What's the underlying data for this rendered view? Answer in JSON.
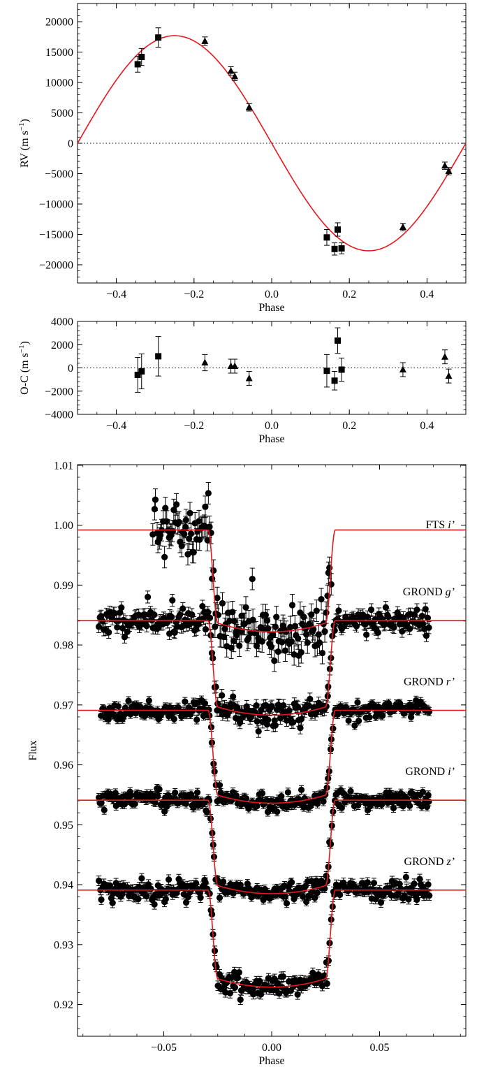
{
  "chart_data": [
    {
      "type": "scatter",
      "ylabel": "RV (m s−1)",
      "xlabel": "Phase",
      "xlim": [
        -0.5,
        0.5
      ],
      "ylim": [
        -23000,
        23000
      ],
      "xticks": [
        -0.4,
        -0.2,
        0.0,
        0.2,
        0.4
      ],
      "xtick_labels": [
        "−0.4",
        "−0.2",
        "0.0",
        "0.2",
        "0.4"
      ],
      "yticks": [
        -20000,
        -15000,
        -10000,
        -5000,
        0,
        5000,
        10000,
        15000,
        20000
      ],
      "ytick_labels": [
        "−20000",
        "−15000",
        "−10000",
        "−5000",
        "0",
        "5000",
        "10000",
        "15000",
        "20000"
      ],
      "zero_line": true,
      "model": {
        "type": "sine",
        "amplitude": 17700,
        "color": "#e8171d"
      },
      "series": [
        {
          "marker": "square",
          "points": [
            {
              "x": -0.345,
              "y": 13000,
              "err": 1300
            },
            {
              "x": -0.335,
              "y": 14200,
              "err": 1400
            },
            {
              "x": -0.292,
              "y": 17400,
              "err": 1600
            },
            {
              "x": 0.142,
              "y": -15500,
              "err": 1300
            },
            {
              "x": 0.162,
              "y": -17400,
              "err": 1000
            },
            {
              "x": 0.17,
              "y": -14200,
              "err": 1100
            },
            {
              "x": 0.18,
              "y": -17300,
              "err": 900
            }
          ]
        },
        {
          "marker": "triangle",
          "points": [
            {
              "x": -0.172,
              "y": 16800,
              "err": 700
            },
            {
              "x": -0.105,
              "y": 11900,
              "err": 700
            },
            {
              "x": -0.095,
              "y": 11000,
              "err": 700
            },
            {
              "x": -0.058,
              "y": 5900,
              "err": 600
            },
            {
              "x": 0.338,
              "y": -13800,
              "err": 600
            },
            {
              "x": 0.446,
              "y": -3700,
              "err": 600
            },
            {
              "x": 0.456,
              "y": -4600,
              "err": 600
            }
          ]
        }
      ]
    },
    {
      "type": "scatter",
      "ylabel": "O-C (m s−1)",
      "xlabel": "Phase",
      "xlim": [
        -0.5,
        0.5
      ],
      "ylim": [
        -4000,
        4000
      ],
      "xticks": [
        -0.4,
        -0.2,
        0.0,
        0.2,
        0.4
      ],
      "xtick_labels": [
        "−0.4",
        "−0.2",
        "0.0",
        "0.2",
        "0.4"
      ],
      "yticks": [
        -4000,
        -2000,
        0,
        2000,
        4000
      ],
      "ytick_labels": [
        "−4000",
        "−2000",
        "0",
        "2000",
        "4000"
      ],
      "zero_line": true,
      "series": [
        {
          "marker": "square",
          "points": [
            {
              "x": -0.345,
              "y": -600,
              "err": 1500
            },
            {
              "x": -0.335,
              "y": -300,
              "err": 1500
            },
            {
              "x": -0.292,
              "y": 1000,
              "err": 1700
            },
            {
              "x": 0.142,
              "y": -250,
              "err": 1400
            },
            {
              "x": 0.162,
              "y": -1100,
              "err": 800
            },
            {
              "x": 0.17,
              "y": 2350,
              "err": 1100
            },
            {
              "x": 0.18,
              "y": -150,
              "err": 1000
            }
          ]
        },
        {
          "marker": "triangle",
          "points": [
            {
              "x": -0.172,
              "y": 450,
              "err": 700
            },
            {
              "x": -0.105,
              "y": 150,
              "err": 600
            },
            {
              "x": -0.095,
              "y": 150,
              "err": 600
            },
            {
              "x": -0.058,
              "y": -900,
              "err": 600
            },
            {
              "x": 0.338,
              "y": -150,
              "err": 600
            },
            {
              "x": 0.446,
              "y": 950,
              "err": 600
            },
            {
              "x": 0.456,
              "y": -700,
              "err": 600
            }
          ]
        }
      ]
    },
    {
      "type": "scatter",
      "ylabel": "Flux",
      "xlabel": "Phase",
      "xlim": [
        -0.09,
        0.09
      ],
      "ylim": [
        0.9147,
        1.0101
      ],
      "xticks": [
        -0.05,
        0.0,
        0.05
      ],
      "xtick_labels": [
        "−0.05",
        "0.00",
        "0.05"
      ],
      "yticks": [
        0.92,
        0.93,
        0.94,
        0.95,
        0.96,
        0.97,
        0.98,
        0.99,
        1.0,
        1.01
      ],
      "ytick_labels": [
        "0.92",
        "0.93",
        "0.94",
        "0.95",
        "0.96",
        "0.97",
        "0.98",
        "0.99",
        "1.00",
        "1.01"
      ],
      "model_color": "#e8171d",
      "transit": {
        "t14": 0.0295,
        "ingress": 0.0045,
        "limb_darkening": 0.45
      },
      "series": [
        {
          "label": "FTS",
          "band": "i’",
          "baseline": 0.9992,
          "depth": 0.017,
          "noise": 0.0023,
          "err": 0.0018,
          "xrange": [
            -0.055,
            0.0275
          ],
          "n": 145,
          "seed": 7
        },
        {
          "label": "GROND",
          "band": "g’",
          "baseline": 0.9841,
          "depth": 0.0018,
          "noise": 0.0011,
          "err": 0.001,
          "xrange": [
            -0.08,
            0.073
          ],
          "n": 270,
          "seed": 11,
          "extra_drop": 0.0
        },
        {
          "label": "GROND",
          "band": "r’",
          "baseline": 0.9691,
          "depth": 0.0,
          "noise": 0.0007,
          "err": 0.0007,
          "xrange": [
            -0.079,
            0.073
          ],
          "n": 270,
          "seed": 23
        },
        {
          "label": "GROND",
          "band": "i’",
          "baseline": 0.9541,
          "depth": 0.0,
          "noise": 0.0008,
          "err": 0.0007,
          "xrange": [
            -0.08,
            0.073
          ],
          "n": 270,
          "seed": 37
        },
        {
          "label": "GROND",
          "band": "z’",
          "baseline": 0.9391,
          "depth": 0.0,
          "noise": 0.0009,
          "err": 0.0008,
          "xrange": [
            -0.08,
            0.073
          ],
          "n": 270,
          "seed": 53
        }
      ]
    }
  ]
}
